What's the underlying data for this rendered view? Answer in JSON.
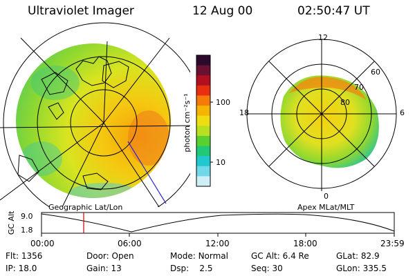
{
  "header": {
    "instrument": "Ultraviolet Imager",
    "date": "12 Aug 00",
    "time": "02:50:47 UT"
  },
  "colors": {
    "map_line": "#000000",
    "track_marker": "#cc0000",
    "meridian_line": "#2a2ad0"
  },
  "colorbar": {
    "unit_label": "photon cm⁻²s⁻¹",
    "ticks": [
      "100",
      "10"
    ],
    "scale": "log",
    "colors": [
      "#2c0a2c",
      "#6a1030",
      "#b01020",
      "#e83010",
      "#f57a0a",
      "#f5b400",
      "#eedd10",
      "#b8e020",
      "#58d030",
      "#20c878",
      "#20c8d0",
      "#70d8e8",
      "#cfeef5"
    ]
  },
  "geo_panel": {
    "label": "Geographic Lat/Lon",
    "projection_outline": "circle"
  },
  "mag_panel": {
    "label": "Apex MLat/MLT",
    "mlt_labels": [
      "12",
      "18",
      "6",
      "0"
    ],
    "mlat_labels": [
      "60",
      "70",
      "80"
    ]
  },
  "orbit_plot": {
    "ylabel": "GC Alt",
    "y_ticks": [
      "9.0",
      "1.8"
    ],
    "x_ticks": [
      "00:00",
      "06:00",
      "12:00",
      "18:00",
      "23:59"
    ],
    "current_time_marker": "02:50"
  },
  "info_rows": [
    [
      {
        "key": "Flt:",
        "value": "1356"
      },
      {
        "key": "Door:",
        "value": "Open"
      },
      {
        "key": "Mode:",
        "value": "Normal"
      },
      {
        "key": "GC Alt:",
        "value": "6.4 Re"
      },
      {
        "key": "GLat:",
        "value": "82.9"
      }
    ],
    [
      {
        "key": "IP:",
        "value": "18.0"
      },
      {
        "key": "Gain:",
        "value": "13"
      },
      {
        "key": "Dsp:",
        "value": "2.5"
      },
      {
        "key": "Seq:",
        "value": "30"
      },
      {
        "key": "GLon:",
        "value": "335.5"
      }
    ]
  ]
}
